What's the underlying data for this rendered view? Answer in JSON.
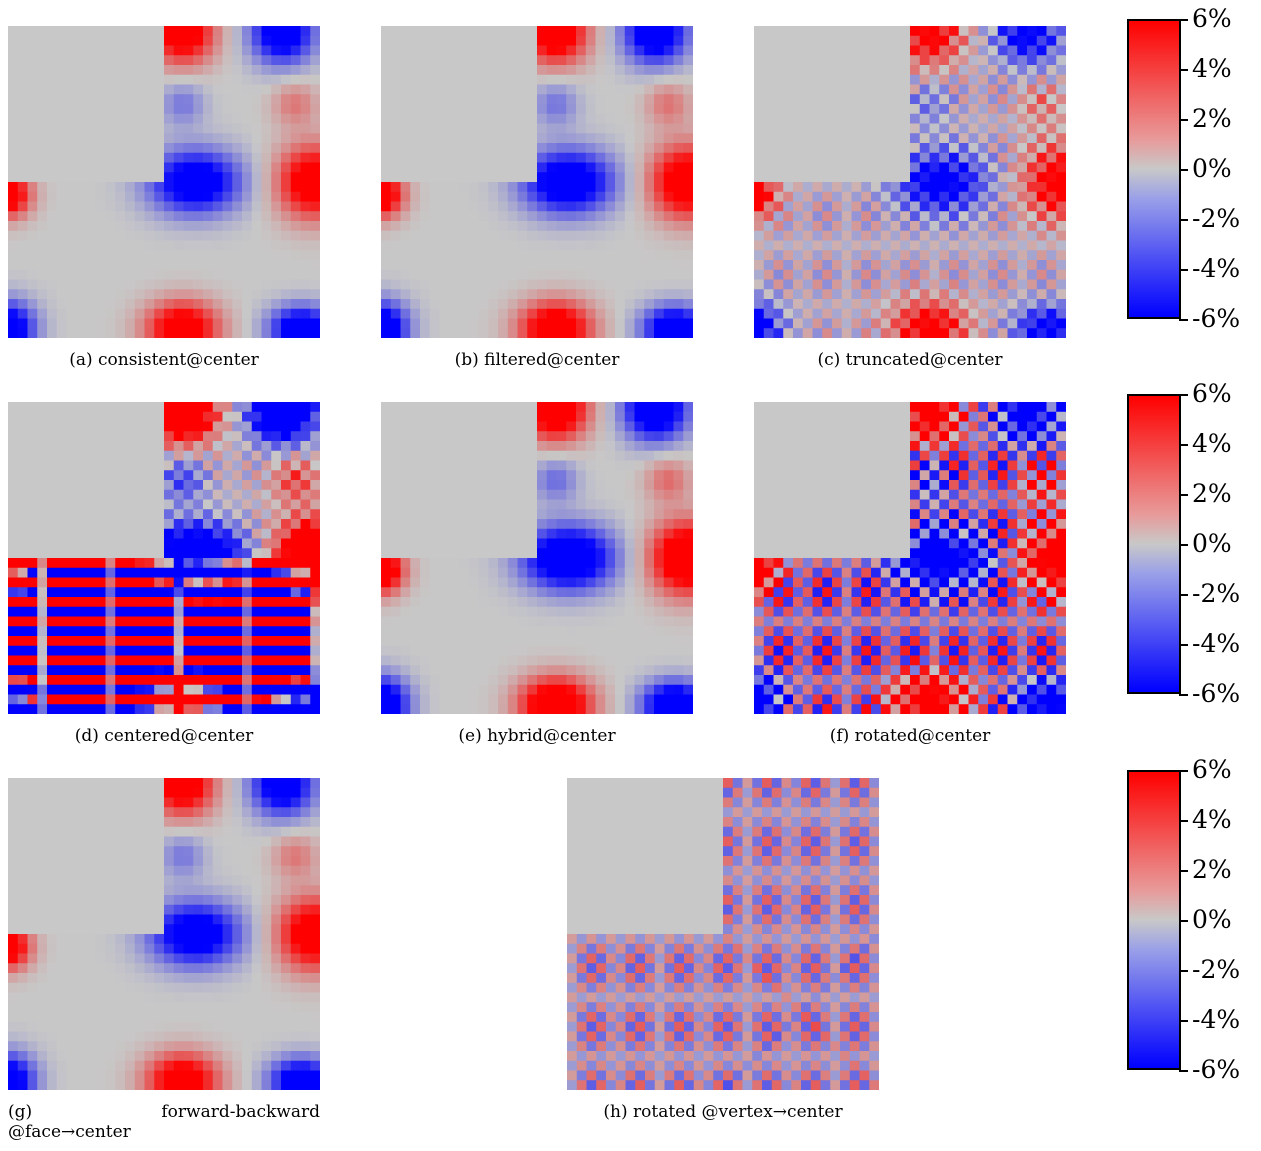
{
  "panels": [
    {
      "id": "a",
      "caption": "(a) consistent@center",
      "pattern": "smooth",
      "amp": 1.0,
      "noise": 0.0,
      "checker": 0.0,
      "band": 0.0
    },
    {
      "id": "b",
      "caption": "(b) filtered@center",
      "pattern": "smooth",
      "amp": 1.05,
      "noise": 0.0,
      "checker": 0.0,
      "band": 0.0
    },
    {
      "id": "c",
      "caption": "(c) truncated@center",
      "pattern": "smooth",
      "amp": 0.9,
      "noise": 0.0,
      "checker": 0.35,
      "band": 0.0
    },
    {
      "id": "d",
      "caption": "(d) centered@center",
      "pattern": "smooth",
      "amp": 1.6,
      "noise": 0.0,
      "checker": 0.3,
      "band": 1.0
    },
    {
      "id": "e",
      "caption": "(e) hybrid@center",
      "pattern": "smooth",
      "amp": 1.15,
      "noise": 0.0,
      "checker": 0.0,
      "band": 0.0
    },
    {
      "id": "f",
      "caption": "(f) rotated@center",
      "pattern": "smooth",
      "amp": 1.4,
      "noise": 0.0,
      "checker": 1.0,
      "band": 0.0
    },
    {
      "id": "g",
      "caption_left": "(g)",
      "caption_right": "forward-backward",
      "caption_line2": "@face→center",
      "pattern": "smooth",
      "amp": 1.0,
      "noise": 0.0,
      "checker": 0.0,
      "band": 0.0
    },
    {
      "id": "h",
      "caption": "(h) rotated @vertex→center",
      "pattern": "faint",
      "amp": 0.25,
      "noise": 0.0,
      "checker": 0.6,
      "band": 0.0
    }
  ],
  "colorbar": {
    "ticks": [
      "6%",
      "4%",
      "2%",
      "0%",
      "-2%",
      "-4%",
      "-6%"
    ],
    "colors": {
      "max": "#ff0000",
      "mid": "#c8c8c8",
      "min": "#0000ff"
    }
  }
}
